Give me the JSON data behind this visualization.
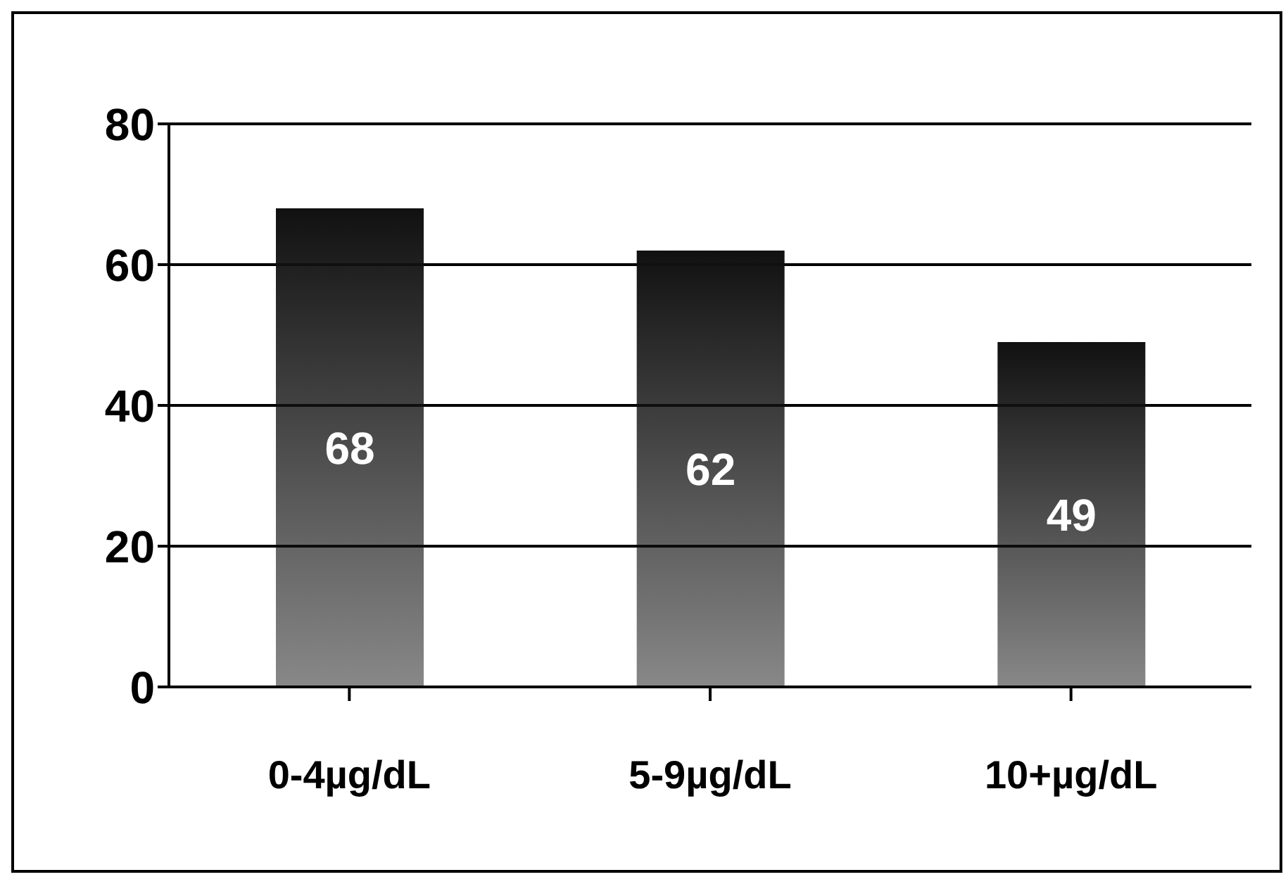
{
  "chart_data": {
    "type": "bar",
    "categories": [
      "0-4µg/dL",
      "5-9µg/dL",
      "10+µg/dL"
    ],
    "values": [
      68,
      62,
      49
    ],
    "color": "#111111",
    "ylim": [
      0,
      80
    ],
    "yticks": [
      0,
      20,
      40,
      60,
      80
    ],
    "grid": "y",
    "data_labels": true
  }
}
